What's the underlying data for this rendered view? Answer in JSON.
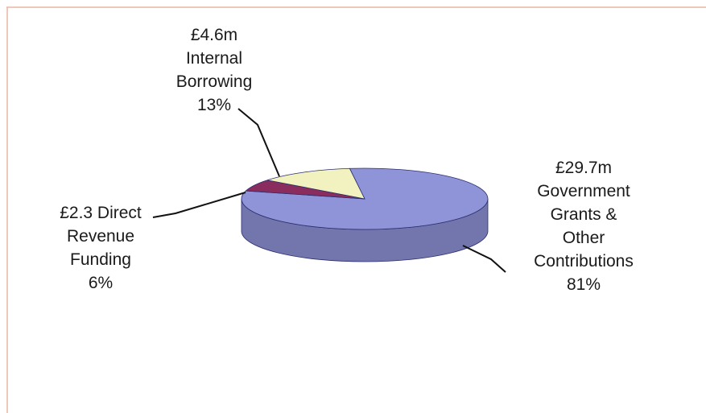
{
  "chart_data": {
    "type": "pie",
    "title": "",
    "style": "3d",
    "colors": {
      "Government Grants & Other Contributions": "#8f93d8",
      "Direct Revenue Funding": "#8a2c5e",
      "Internal Borrowing": "#f2f2c0",
      "frame_line": "#e8b7a2"
    },
    "slices": [
      {
        "name": "Government Grants & Other Contributions",
        "value": 29.7,
        "percent": 81,
        "label_lines": [
          "£29.7m",
          "Government",
          "Grants &",
          "Other",
          "Contributions",
          "81%"
        ]
      },
      {
        "name": "Direct Revenue Funding",
        "value": 2.3,
        "percent": 6,
        "label_lines": [
          "£2.3 Direct",
          "Revenue",
          "Funding",
          "6%"
        ]
      },
      {
        "name": "Internal Borrowing",
        "value": 4.6,
        "percent": 13,
        "label_lines": [
          "£4.6m",
          "Internal",
          "Borrowing",
          "13%"
        ]
      }
    ],
    "legend": "none",
    "grid": false
  }
}
